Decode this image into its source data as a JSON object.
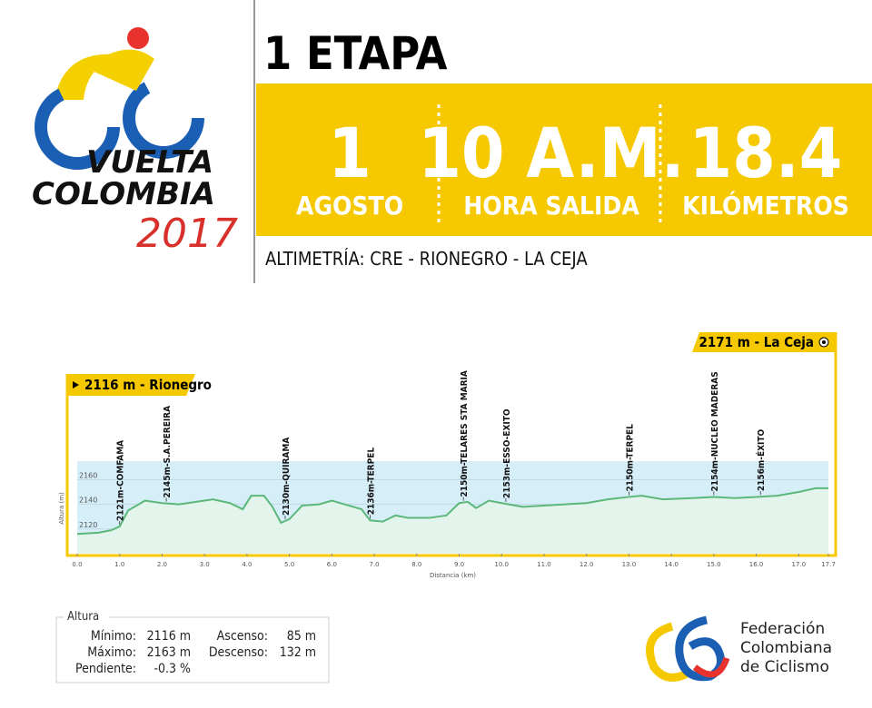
{
  "logo": {
    "line1": "VUELTA",
    "line2": "COLOMBIA",
    "year": "2017"
  },
  "header": {
    "title": "1 ETAPA",
    "stats": [
      {
        "value": "1",
        "label": "AGOSTO"
      },
      {
        "value": "10 A.M.",
        "label": "HORA SALIDA"
      },
      {
        "value": "18.4",
        "label": "KILÓMETROS"
      }
    ],
    "subtitle": "ALTIMETRÍA: CRE - RIONEGRO - LA CEJA"
  },
  "chart_data": {
    "type": "area",
    "start_label": "2116 m - Rionegro",
    "end_label": "2171 m - La Ceja",
    "xlabel": "Distancia (km)",
    "ylabel": "Altura (m)",
    "x": [
      0.0,
      0.5,
      0.8,
      1.0,
      1.2,
      1.6,
      2.0,
      2.4,
      2.8,
      3.2,
      3.6,
      3.9,
      4.1,
      4.4,
      4.6,
      4.8,
      5.0,
      5.3,
      5.7,
      6.0,
      6.4,
      6.7,
      6.9,
      7.2,
      7.5,
      7.8,
      8.3,
      8.7,
      9.0,
      9.2,
      9.4,
      9.7,
      10.0,
      10.5,
      11.0,
      11.5,
      12.0,
      12.5,
      13.0,
      13.3,
      13.8,
      14.5,
      15.0,
      15.5,
      16.0,
      16.5,
      17.0,
      17.4,
      17.7
    ],
    "values": [
      2116,
      2117,
      2119,
      2122,
      2135,
      2143,
      2141,
      2140,
      2142,
      2144,
      2141,
      2136,
      2147,
      2147,
      2138,
      2125,
      2128,
      2139,
      2140,
      2143,
      2139,
      2136,
      2127,
      2126,
      2131,
      2129,
      2129,
      2131,
      2141,
      2142,
      2137,
      2143,
      2141,
      2138,
      2139,
      2140,
      2141,
      2144,
      2146,
      2147,
      2144,
      2145,
      2146,
      2145,
      2146,
      2147,
      2150,
      2153,
      2153
    ],
    "color": "#5cb87a",
    "fill": "#e3f4ea",
    "band_color": "#d6eef8",
    "xlim": [
      0,
      17.7
    ],
    "ylim": [
      2100,
      2175
    ],
    "xticks": [
      {
        "value": 0,
        "label": "0.0"
      },
      {
        "value": 1,
        "label": "1.0"
      },
      {
        "value": 2,
        "label": "2.0"
      },
      {
        "value": 3,
        "label": "3.0"
      },
      {
        "value": 4,
        "label": "4.0"
      },
      {
        "value": 5,
        "label": "5.0"
      },
      {
        "value": 6,
        "label": "6.0"
      },
      {
        "value": 7,
        "label": "7.0"
      },
      {
        "value": 8,
        "label": "8.0"
      },
      {
        "value": 9,
        "label": "9.0"
      },
      {
        "value": 10,
        "label": "10.0"
      },
      {
        "value": 11,
        "label": "11.0"
      },
      {
        "value": 12,
        "label": "12.0"
      },
      {
        "value": 13,
        "label": "13.0"
      },
      {
        "value": 14,
        "label": "14.0"
      },
      {
        "value": 15,
        "label": "15.0"
      },
      {
        "value": 16,
        "label": "16.0"
      },
      {
        "value": 17,
        "label": "17.0"
      },
      17.7
    ],
    "yticks": [
      2120,
      2140,
      2160
    ],
    "grid": true,
    "annotations": [
      {
        "x": 1.0,
        "label": "2121m-COMFAMA"
      },
      {
        "x": 2.1,
        "label": "2145m-S.A.PEREIRA"
      },
      {
        "x": 4.9,
        "label": "2130m-QUIRAMA"
      },
      {
        "x": 6.9,
        "label": "2136m-TERPEL"
      },
      {
        "x": 9.1,
        "label": "2150m-TELARES  STA MARIA"
      },
      {
        "x": 10.1,
        "label": "2153m-ESSO-EXITO"
      },
      {
        "x": 13.0,
        "label": "2150m-TERPEL"
      },
      {
        "x": 15.0,
        "label": "2154m-NUCLEO MADERAS"
      },
      {
        "x": 16.1,
        "label": "2156m-ÉXITO"
      }
    ]
  },
  "summary": {
    "title": "Altura",
    "rows": [
      [
        "Mínimo:",
        "2116 m",
        "Ascenso:",
        "85 m"
      ],
      [
        "Máximo:",
        "2163 m",
        "Descenso:",
        "132 m"
      ],
      [
        "Pendiente:",
        "-0.3 %"
      ]
    ]
  },
  "federation": {
    "lines": [
      "Federación",
      "Colombiana",
      "de Ciclismo"
    ]
  }
}
